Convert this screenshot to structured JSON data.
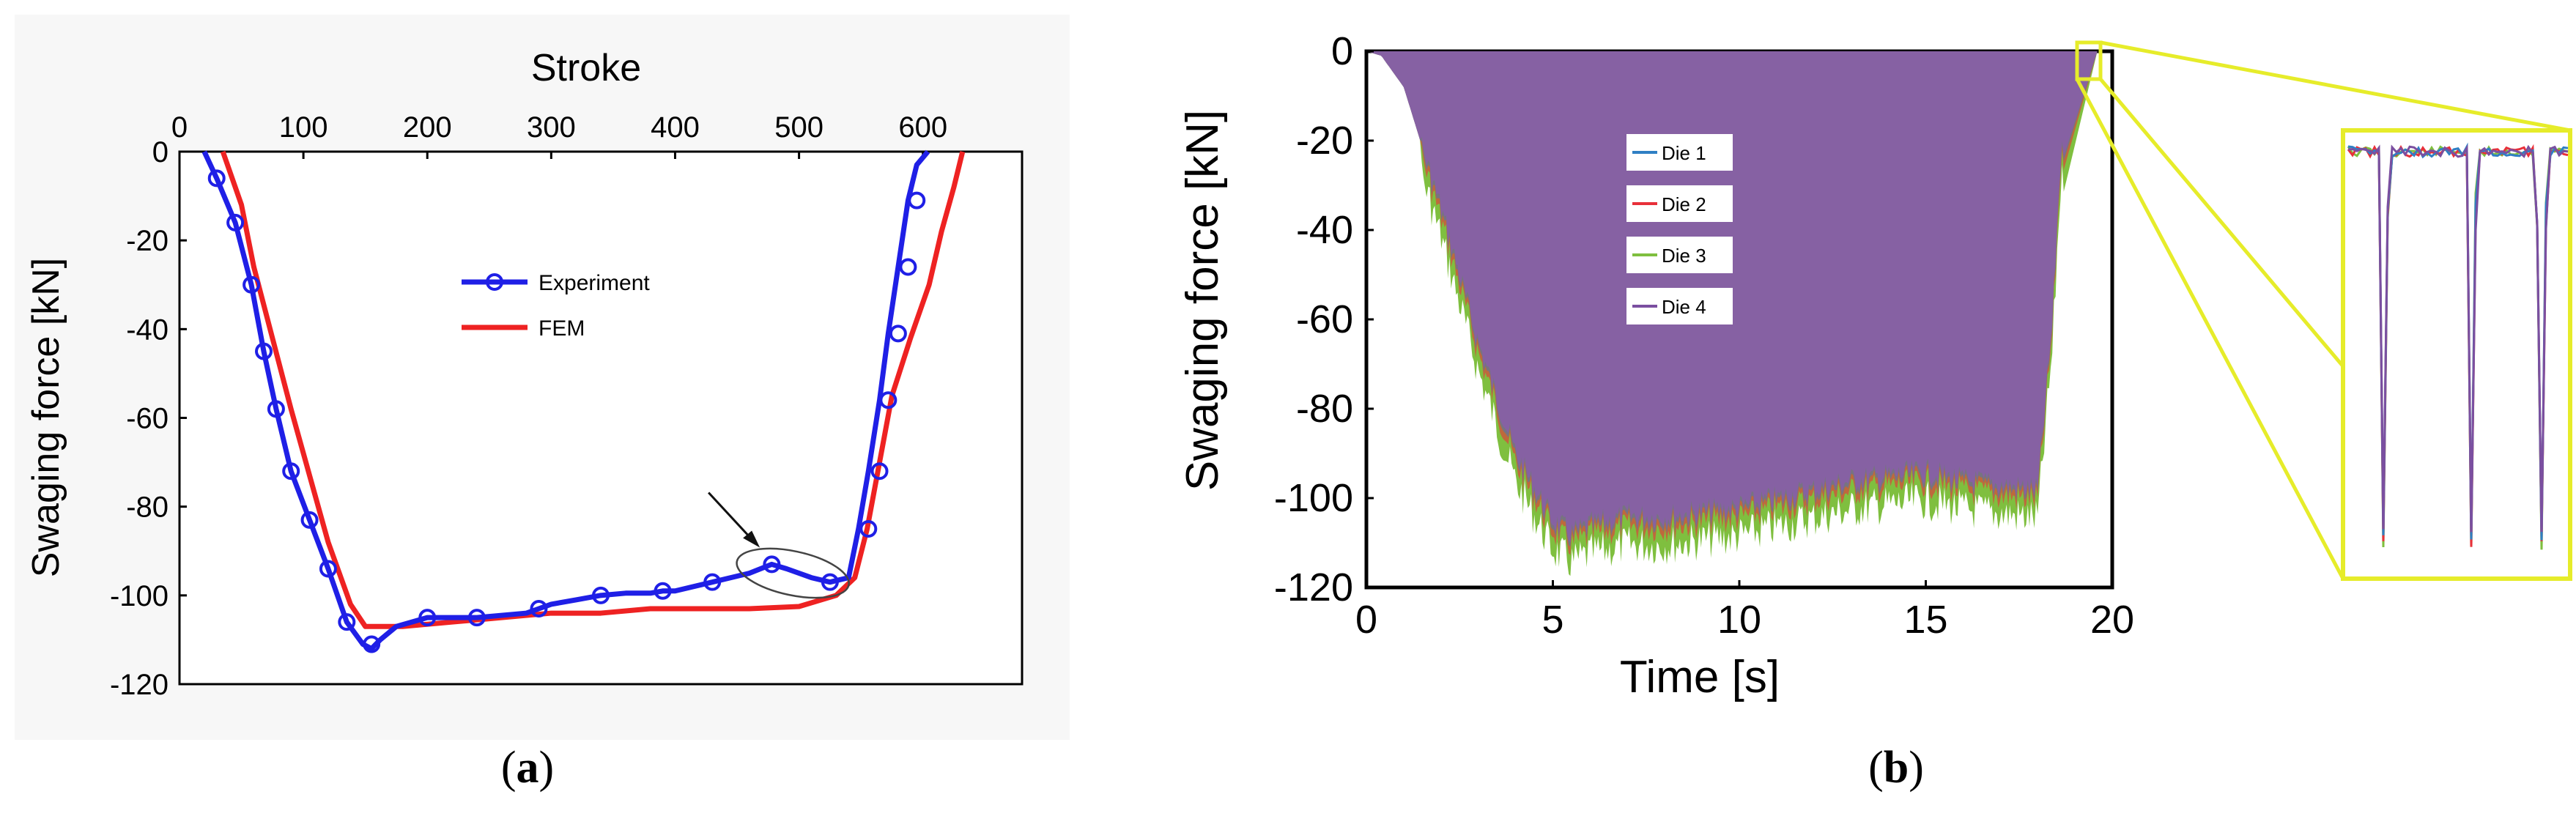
{
  "colors": {
    "experiment": "#1f1fe6",
    "fem": "#ee2222",
    "die1": "#2f7fc4",
    "die2": "#e8303a",
    "die3": "#7fbf3f",
    "die4": "#7b4fa0",
    "fill_b": "#8661a3",
    "zoom": "#e6ec2a",
    "panel_bg": "#f7f7f7"
  },
  "panel_labels": {
    "a": "a",
    "b": "b"
  },
  "chart_data": [
    {
      "type": "line",
      "title": "Stroke",
      "xlabel": "Stroke",
      "ylabel": "Swaging force [kN]",
      "xlim": [
        0,
        680
      ],
      "ylim": [
        -120,
        0
      ],
      "xticks": [
        "0",
        "100",
        "200",
        "300",
        "400",
        "500",
        "600"
      ],
      "xtick_values": [
        0,
        100,
        200,
        300,
        400,
        500,
        600
      ],
      "yticks": [
        "0",
        "-20",
        "-40",
        "-60",
        "-80",
        "-100",
        "-120"
      ],
      "ytick_values": [
        0,
        -20,
        -40,
        -60,
        -80,
        -100,
        -120
      ],
      "legend": [
        "Experiment",
        "FEM"
      ],
      "legend_position": "upper-center",
      "series": [
        {
          "name": "Experiment",
          "marker": "circle",
          "x": [
            20,
            30,
            45,
            58,
            68,
            78,
            90,
            105,
            120,
            135,
            148,
            155,
            162,
            175,
            200,
            240,
            280,
            290,
            300,
            320,
            340,
            360,
            380,
            390,
            400,
            430,
            460,
            478,
            490,
            510,
            525,
            540,
            548,
            556,
            565,
            572,
            580,
            588,
            595,
            604
          ],
          "y": [
            0,
            -6,
            -16,
            -30,
            -45,
            -58,
            -72,
            -83,
            -94,
            -106,
            -111,
            -112,
            -110,
            -107,
            -105,
            -105,
            -104,
            -103,
            -102,
            -101,
            -100,
            -99.5,
            -99.5,
            -99,
            -99,
            -97,
            -95,
            -93,
            -94,
            -96,
            -97,
            -96,
            -85,
            -72,
            -56,
            -41,
            -26,
            -11,
            -3,
            0
          ],
          "marker_x": [
            30,
            45,
            58,
            68,
            78,
            90,
            105,
            120,
            135,
            155,
            200,
            240,
            290,
            340,
            390,
            430,
            478,
            525,
            556,
            565,
            572,
            580,
            588,
            595
          ],
          "marker_y": [
            -6,
            -16,
            -30,
            -45,
            -58,
            -72,
            -83,
            -94,
            -106,
            -111,
            -105,
            -105,
            -103,
            -100,
            -99,
            -97,
            -93,
            -97,
            -85,
            -72,
            -56,
            -41,
            -26,
            -11
          ]
        },
        {
          "name": "FEM",
          "marker": "none",
          "x": [
            35,
            50,
            60,
            75,
            90,
            105,
            120,
            138,
            150,
            160,
            180,
            220,
            260,
            300,
            340,
            380,
            420,
            460,
            500,
            530,
            545,
            555,
            565,
            575,
            590,
            605,
            615,
            625,
            632
          ],
          "y": [
            0,
            -12,
            -26,
            -42,
            -58,
            -73,
            -88,
            -102,
            -107,
            -107,
            -107,
            -106,
            -105,
            -104,
            -104,
            -103,
            -103,
            -103,
            -102.5,
            -100,
            -96,
            -85,
            -70,
            -55,
            -42,
            -30,
            -18,
            -8,
            0
          ]
        }
      ],
      "annotations": [
        {
          "type": "ellipse-with-arrow",
          "center": [
            495,
            -95
          ],
          "note": "highlighted local peak"
        }
      ]
    },
    {
      "type": "area",
      "xlabel": "Time [s]",
      "ylabel": "Swaging force [kN]",
      "xlim": [
        0,
        20
      ],
      "ylim": [
        -120,
        0
      ],
      "xticks": [
        "0",
        "5",
        "10",
        "15",
        "20"
      ],
      "xtick_values": [
        0,
        5,
        10,
        15,
        20
      ],
      "yticks": [
        "0",
        "-20",
        "-40",
        "-60",
        "-80",
        "-100",
        "-120"
      ],
      "ytick_values": [
        0,
        -20,
        -40,
        -60,
        -80,
        -100,
        -120
      ],
      "legend": [
        "Die 1",
        "Die 2",
        "Die 3",
        "Die 4"
      ],
      "legend_position": "center-left",
      "series": [
        {
          "name": "Die 1",
          "note": "oscillating envelope, same as Die 4"
        },
        {
          "name": "Die 2",
          "note": "oscillating envelope, same as Die 4"
        },
        {
          "name": "Die 3",
          "note": "slightly deeper envelope"
        },
        {
          "name": "Die 4",
          "envelope_x": [
            0,
            0.4,
            1.0,
            2.0,
            3.0,
            4.0,
            5.0,
            5.5,
            6.0,
            7.0,
            8.0,
            9.0,
            10.0,
            11.0,
            12.0,
            13.0,
            14.0,
            15.0,
            16.0,
            17.0,
            18.0,
            18.4,
            18.6,
            19.0,
            19.3,
            19.6,
            20.0
          ],
          "envelope_y": [
            0,
            -1,
            -8,
            -35,
            -65,
            -90,
            -105,
            -108,
            -106,
            -104,
            -104,
            -103,
            -102,
            -100,
            -98,
            -96,
            -95,
            -94,
            -96,
            -97,
            -98,
            -60,
            -25,
            -8,
            -2,
            0,
            0
          ]
        }
      ],
      "inset": {
        "description": "zoom of first cycles near t≈19.3 s",
        "drops": 3
      }
    }
  ]
}
